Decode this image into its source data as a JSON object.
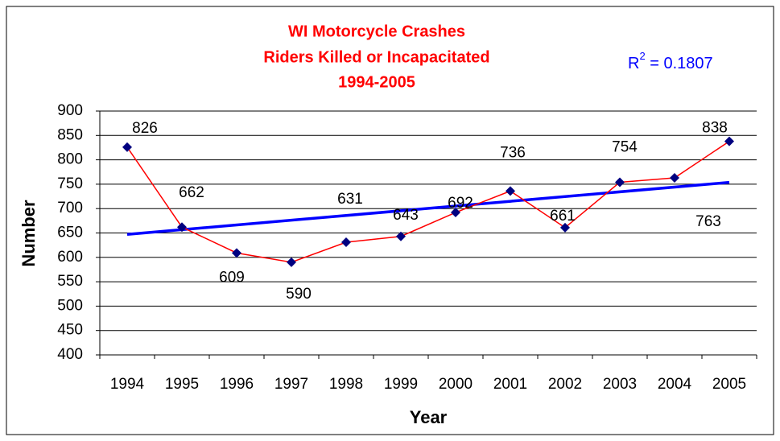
{
  "chart_data": {
    "type": "line",
    "title": [
      "WI Motorcycle Crashes",
      "Riders Killed or Incapacitated",
      "1994-2005"
    ],
    "x_label": "Year",
    "y_label": "Number",
    "categories": [
      "1994",
      "1995",
      "1996",
      "1997",
      "1998",
      "1999",
      "2000",
      "2001",
      "2002",
      "2003",
      "2004",
      "2005"
    ],
    "series": [
      {
        "name": "Riders Killed or Incapacitated",
        "color": "#ff0000",
        "marker_color": "#000080",
        "values": [
          826,
          662,
          609,
          590,
          631,
          643,
          692,
          736,
          661,
          754,
          763,
          838
        ]
      }
    ],
    "trendline": {
      "type": "linear",
      "color": "#0000ff",
      "label": {
        "base": "R",
        "sup": "2",
        "text": " = 0.1807"
      }
    },
    "ylim": [
      400,
      900
    ],
    "yticks": [
      400,
      450,
      500,
      550,
      600,
      650,
      700,
      750,
      800,
      850,
      900
    ],
    "grid": true
  }
}
